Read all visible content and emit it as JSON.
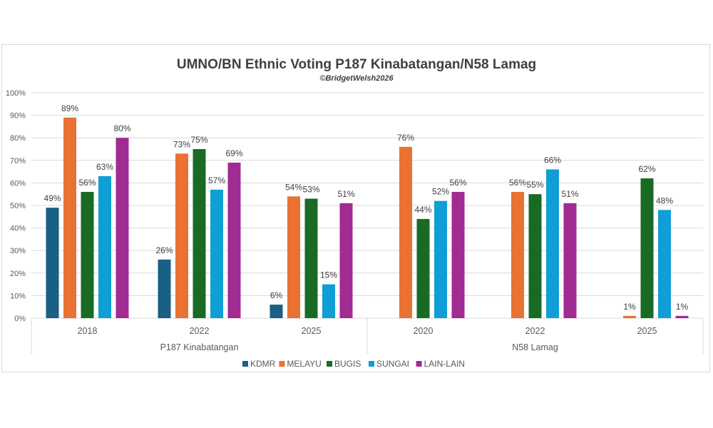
{
  "chart_data": {
    "type": "bar",
    "title": "UMNO/BN Ethnic Voting P187 Kinabatangan/N58 Lamag",
    "subtitle": "©BridgetWelsh2026",
    "ylim": [
      0,
      100
    ],
    "yticks": [
      "0%",
      "10%",
      "20%",
      "30%",
      "40%",
      "50%",
      "60%",
      "70%",
      "80%",
      "90%",
      "100%"
    ],
    "grid": true,
    "legend_position": "bottom",
    "group_labels": [
      {
        "label": "P187 Kinabatangan",
        "categories": [
          0,
          1,
          2
        ]
      },
      {
        "label": "N58 Lamag",
        "categories": [
          3,
          4,
          5
        ]
      }
    ],
    "categories": [
      "2018",
      "2022",
      "2025",
      "2020",
      "2022",
      "2025"
    ],
    "series": [
      {
        "name": "KDMR",
        "color": "#1a5f84",
        "values": [
          49,
          26,
          6,
          null,
          null,
          null
        ]
      },
      {
        "name": "MELAYU",
        "color": "#e97132",
        "values": [
          89,
          73,
          54,
          76,
          56,
          1
        ]
      },
      {
        "name": "BUGIS",
        "color": "#196b24",
        "values": [
          56,
          75,
          53,
          44,
          55,
          62
        ]
      },
      {
        "name": "SUNGAI",
        "color": "#0f9ed5",
        "values": [
          63,
          57,
          15,
          52,
          66,
          48
        ]
      },
      {
        "name": "LAIN-LAIN",
        "color": "#a02b93",
        "values": [
          80,
          69,
          51,
          56,
          51,
          1
        ]
      }
    ]
  }
}
